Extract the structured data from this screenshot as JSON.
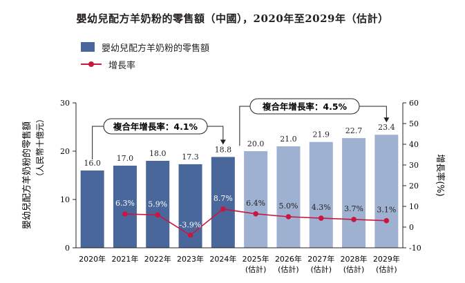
{
  "title": "嬰幼兒配方羊奶粉的零售額（中國），2020年至2029年（估計）",
  "legend": {
    "bar_label": "嬰幼兒配方羊奶粉的零售額",
    "line_label": "增長率"
  },
  "colors": {
    "historical_bar": "#4a679b",
    "forecast_bar": "#9fb1d1",
    "line": "#c8163f"
  },
  "chart_data": {
    "type": "bar+line",
    "categories": [
      "2020年",
      "2021年",
      "2022年",
      "2023年",
      "2024年",
      "2025年",
      "2026年",
      "2027年",
      "2028年",
      "2029年"
    ],
    "category_sublabels": [
      "",
      "",
      "",
      "",
      "",
      "(估計)",
      "(估計)",
      "(估計)",
      "(估計)",
      "(估計)"
    ],
    "series": [
      {
        "name": "嬰幼兒配方羊奶粉的零售額",
        "axis": "left",
        "values": [
          16.0,
          17.0,
          18.0,
          17.3,
          18.8,
          20.0,
          21.0,
          21.9,
          22.7,
          23.4
        ],
        "labels": [
          "16.0",
          "17.0",
          "18.0",
          "17.3",
          "18.8",
          "20.0",
          "21.0",
          "21.9",
          "22.7",
          "23.4"
        ],
        "forecast_from_index": 5
      },
      {
        "name": "增長率",
        "axis": "right",
        "values": [
          null,
          6.3,
          5.9,
          -3.9,
          8.7,
          6.4,
          5.0,
          4.3,
          3.7,
          3.1
        ],
        "labels": [
          "",
          "6.3%",
          "5.9%",
          "-3.9%",
          "8.7%",
          "6.4%",
          "5.0%",
          "4.3%",
          "3.7%",
          "3.1%"
        ]
      }
    ],
    "ylabel": "嬰幼兒配方羊奶粉的零售額",
    "ylabel_sub": "（人民幣十億元）",
    "y2label": "增長率(%)",
    "ylim": [
      0,
      30
    ],
    "y_ticks": [
      "0",
      "10",
      "20",
      "30"
    ],
    "y2lim": [
      -10,
      60
    ],
    "y2_ticks": [
      "-10",
      "0",
      "10",
      "20",
      "30",
      "40",
      "50",
      "60"
    ],
    "annotations": [
      {
        "label": "複合年增長率：4.1%",
        "from_index": 0,
        "to_index": 4
      },
      {
        "label": "複合年增長率：4.5%",
        "from_index": 4,
        "to_index": 9
      }
    ],
    "grid": false
  }
}
